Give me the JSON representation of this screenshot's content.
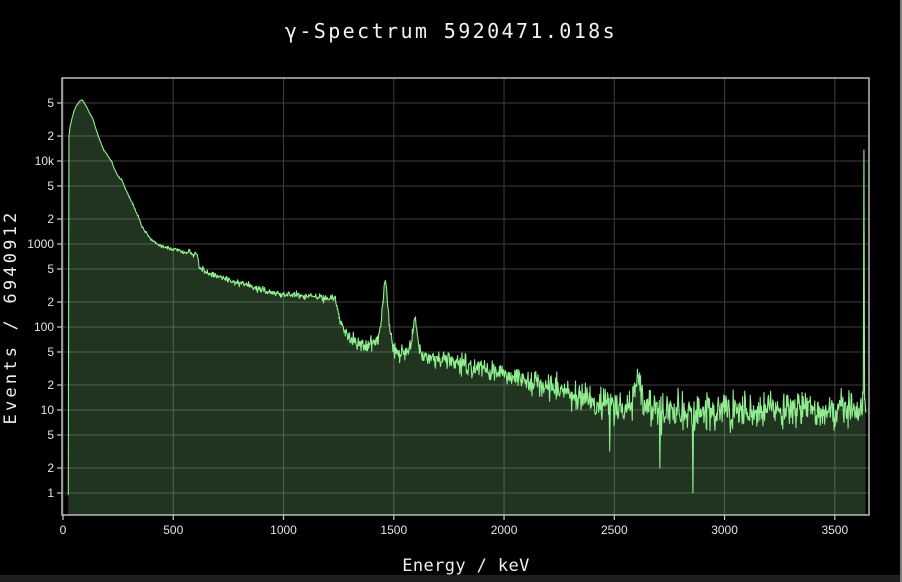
{
  "window": {
    "background": "#000000",
    "bottom_edge_color": "#1f1f1f",
    "right_scrollbar_color": "#7d7d7d"
  },
  "chart_data": {
    "type": "area",
    "title": "γ-Spectrum 5920471.018s",
    "xlabel": "Energy / keV",
    "ylabel": "Events / 6940912",
    "y_scale": "log",
    "grid": true,
    "legend": false,
    "x_range": [
      0,
      3655
    ],
    "y_range_log": [
      -0.265,
      5
    ],
    "x_ticks": {
      "values": [
        0,
        500,
        1000,
        1500,
        2000,
        2500,
        3000,
        3500
      ],
      "labels": [
        "0",
        "500",
        "1000",
        "1500",
        "2000",
        "2500",
        "3000",
        "3500"
      ]
    },
    "y_ticks": {
      "values": [
        1,
        2,
        5,
        10,
        20,
        50,
        100,
        200,
        500,
        1000,
        2000,
        5000,
        10000,
        20000,
        50000
      ],
      "labels": [
        "1",
        "2",
        "5",
        "10",
        "2",
        "5",
        "100",
        "2",
        "5",
        "1000",
        "2",
        "5",
        "10k",
        "2",
        "5"
      ]
    },
    "colors": {
      "line": "#90ee90",
      "fill": "rgba(144,238,144,0.22)",
      "grid": "#3e3e3e",
      "frame": "#c9c9c9",
      "tick_text": "#e3e3e3",
      "title_text": "#f2f2f2",
      "plot_background": "#000000"
    },
    "bin_kev": 2.5,
    "envelope_points": [
      [
        24,
        1.5
      ],
      [
        27,
        20000
      ],
      [
        32,
        26000
      ],
      [
        40,
        32000
      ],
      [
        50,
        40000
      ],
      [
        62,
        47000
      ],
      [
        75,
        52500
      ],
      [
        86,
        54500
      ],
      [
        95,
        51000
      ],
      [
        105,
        46000
      ],
      [
        120,
        38000
      ],
      [
        136,
        32000
      ],
      [
        150,
        24000
      ],
      [
        168,
        17500
      ],
      [
        185,
        13500
      ],
      [
        200,
        12000
      ],
      [
        213,
        10500
      ],
      [
        222,
        9800
      ],
      [
        228,
        8600
      ],
      [
        240,
        7400
      ],
      [
        255,
        6300
      ],
      [
        268,
        5900
      ],
      [
        280,
        4800
      ],
      [
        300,
        3700
      ],
      [
        320,
        2900
      ],
      [
        333,
        2400
      ],
      [
        340,
        2200
      ],
      [
        352,
        1800
      ],
      [
        360,
        1600
      ],
      [
        375,
        1380
      ],
      [
        395,
        1150
      ],
      [
        420,
        1020
      ],
      [
        445,
        950
      ],
      [
        470,
        900
      ],
      [
        500,
        860
      ],
      [
        520,
        830
      ],
      [
        545,
        800
      ],
      [
        565,
        790
      ],
      [
        573,
        850
      ],
      [
        582,
        760
      ],
      [
        596,
        730
      ],
      [
        604,
        800
      ],
      [
        611,
        700
      ],
      [
        617,
        520
      ],
      [
        640,
        480
      ],
      [
        670,
        445
      ],
      [
        700,
        415
      ],
      [
        740,
        380
      ],
      [
        790,
        340
      ],
      [
        840,
        310
      ],
      [
        890,
        285
      ],
      [
        940,
        265
      ],
      [
        1000,
        248
      ],
      [
        1060,
        238
      ],
      [
        1120,
        232
      ],
      [
        1180,
        226
      ],
      [
        1235,
        218
      ],
      [
        1243,
        175
      ],
      [
        1252,
        135
      ],
      [
        1263,
        108
      ],
      [
        1280,
        88
      ],
      [
        1300,
        76
      ],
      [
        1330,
        66
      ],
      [
        1365,
        60
      ],
      [
        1400,
        62
      ],
      [
        1425,
        70
      ],
      [
        1442,
        105
      ],
      [
        1452,
        210
      ],
      [
        1458,
        340
      ],
      [
        1462,
        360
      ],
      [
        1467,
        290
      ],
      [
        1474,
        160
      ],
      [
        1482,
        95
      ],
      [
        1492,
        62
      ],
      [
        1505,
        50
      ],
      [
        1525,
        46
      ],
      [
        1550,
        48
      ],
      [
        1570,
        56
      ],
      [
        1583,
        80
      ],
      [
        1593,
        115
      ],
      [
        1598,
        122
      ],
      [
        1605,
        95
      ],
      [
        1613,
        62
      ],
      [
        1622,
        50
      ],
      [
        1645,
        46
      ],
      [
        1680,
        43
      ],
      [
        1720,
        41
      ],
      [
        1760,
        39
      ],
      [
        1800,
        37
      ],
      [
        1850,
        34
      ],
      [
        1900,
        31
      ],
      [
        1950,
        29
      ],
      [
        2000,
        27
      ],
      [
        2060,
        24
      ],
      [
        2120,
        22
      ],
      [
        2180,
        20
      ],
      [
        2250,
        18
      ],
      [
        2320,
        15
      ],
      [
        2390,
        13
      ],
      [
        2450,
        11.5
      ],
      [
        2520,
        10.5
      ],
      [
        2570,
        11
      ],
      [
        2595,
        18
      ],
      [
        2605,
        24
      ],
      [
        2615,
        18
      ],
      [
        2630,
        12
      ],
      [
        2660,
        10
      ],
      [
        2720,
        9.8
      ],
      [
        2780,
        9.6
      ],
      [
        2850,
        9.4
      ],
      [
        2920,
        9.6
      ],
      [
        3000,
        9.8
      ],
      [
        3080,
        10
      ],
      [
        3160,
        10
      ],
      [
        3240,
        10.2
      ],
      [
        3320,
        10
      ],
      [
        3400,
        10.2
      ],
      [
        3480,
        10
      ],
      [
        3560,
        10.3
      ],
      [
        3610,
        10.5
      ],
      [
        3626,
        11
      ],
      [
        3629,
        12
      ],
      [
        3632,
        13500
      ],
      [
        3635,
        12
      ],
      [
        3640,
        10
      ]
    ],
    "notable_peaks": [
      {
        "kev": 86,
        "counts": 54500
      },
      {
        "kev": 1461,
        "counts": 360
      },
      {
        "kev": 1597,
        "counts": 122
      },
      {
        "kev": 3632,
        "counts": 13500
      }
    ],
    "downward_spikes": [
      [
        2480,
        3.2
      ],
      [
        2706,
        2
      ],
      [
        2856,
        1
      ]
    ],
    "noise": {
      "model": "poisson-log",
      "coefficient": 0.6,
      "seed": 13
    }
  }
}
